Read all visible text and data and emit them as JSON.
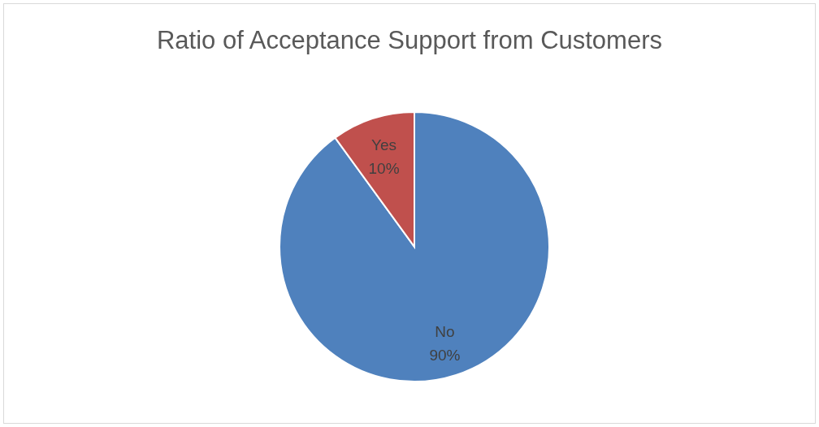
{
  "chart_data": {
    "type": "pie",
    "title": "Ratio of Acceptance Support from Customers",
    "categories": [
      "No",
      "Yes"
    ],
    "values": [
      90,
      10
    ],
    "colors": [
      "#4f81bd",
      "#c0504d"
    ],
    "value_labels": [
      "90%",
      "10%"
    ],
    "legend": false
  }
}
